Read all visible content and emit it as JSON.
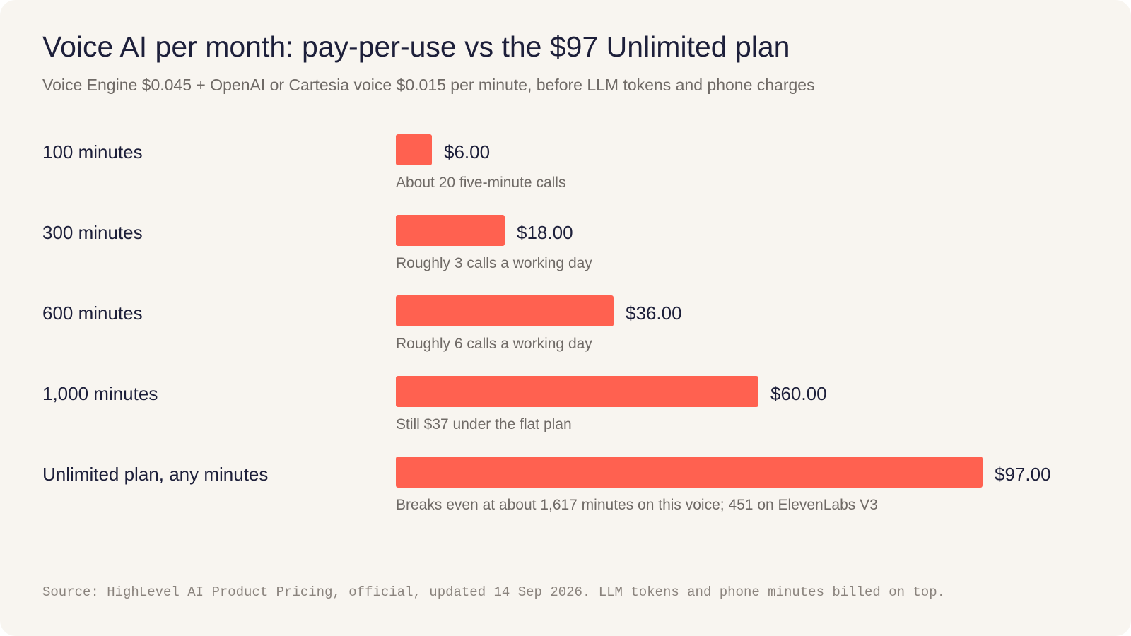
{
  "title": "Voice AI per month: pay-per-use vs the $97 Unlimited plan",
  "subtitle": "Voice Engine $0.045 + OpenAI or Cartesia voice $0.015 per minute, before LLM tokens and phone charges",
  "source": "Source: HighLevel AI Product Pricing, official, updated 14 Sep 2026. LLM tokens and phone minutes billed on top.",
  "colors": {
    "bar": "#ff6150",
    "background": "#f8f5f0",
    "text": "#1d1f3a",
    "muted": "#6f6a66"
  },
  "chart_data": {
    "type": "bar",
    "orientation": "horizontal",
    "title": "Voice AI per month: pay-per-use vs the $97 Unlimited plan",
    "subtitle": "Voice Engine $0.045 + OpenAI or Cartesia voice $0.015 per minute, before LLM tokens and phone charges",
    "xlim": [
      0,
      97
    ],
    "grid": false,
    "categories": [
      "100 minutes",
      "300 minutes",
      "600 minutes",
      "1,000 minutes",
      "Unlimited plan, any minutes"
    ],
    "values": [
      6,
      18,
      36,
      60,
      97
    ],
    "value_labels": [
      "$6.00",
      "$18.00",
      "$36.00",
      "$60.00",
      "$97.00"
    ],
    "annotations": [
      "About 20 five-minute calls",
      "Roughly 3 calls a working day",
      "Roughly 6 calls a working day",
      "Still $37 under the flat plan",
      "Breaks even at about 1,617 minutes on this voice; 451 on ElevenLabs V3"
    ]
  }
}
